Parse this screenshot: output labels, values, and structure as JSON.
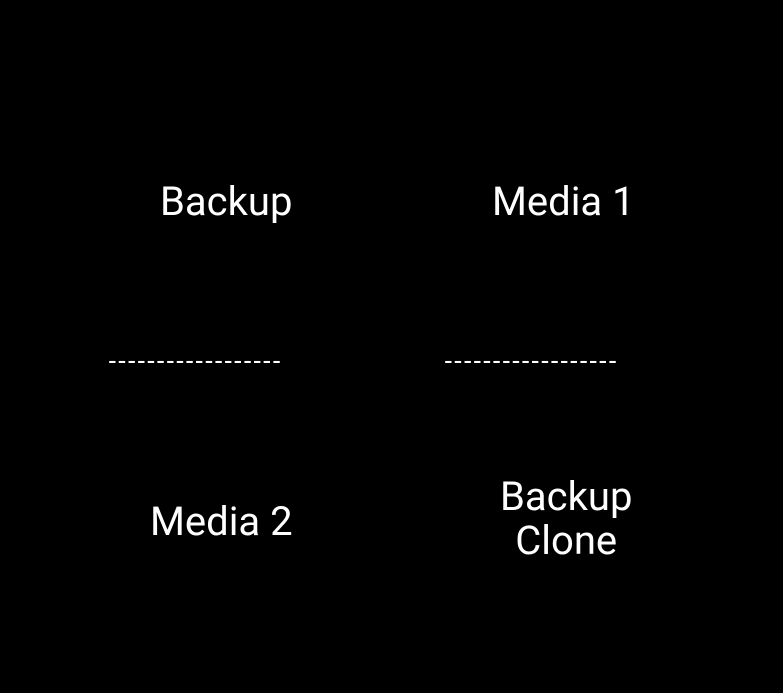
{
  "diagram": {
    "type": "infographic",
    "background_color": "#000000",
    "text_color": "#ffffff",
    "label_fontsize": 40,
    "divider_fontsize": 26,
    "cells": {
      "top_left": "Backup",
      "top_right": "Media 1",
      "bottom_left": "Media 2",
      "bottom_right": "Backup\nClone"
    },
    "divider_pattern": "------------------"
  }
}
